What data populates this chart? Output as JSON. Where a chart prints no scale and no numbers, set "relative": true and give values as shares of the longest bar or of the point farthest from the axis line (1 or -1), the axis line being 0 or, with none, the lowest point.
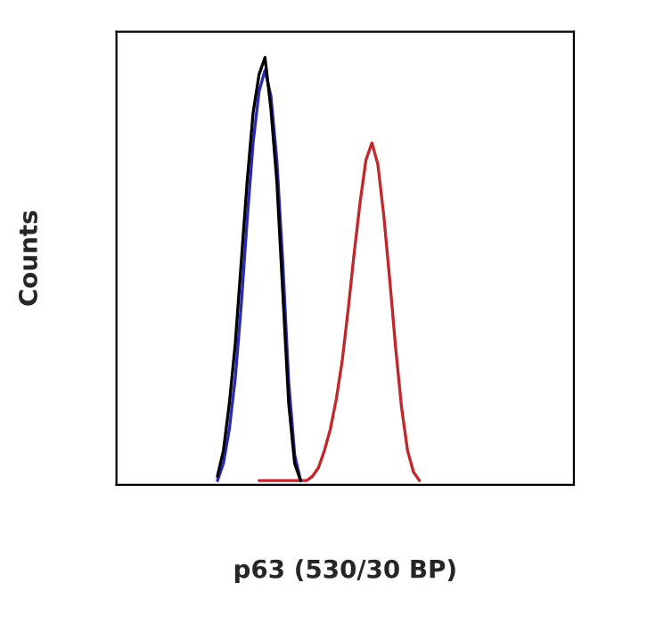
{
  "chart_data": {
    "type": "line",
    "relative": true,
    "xlabel": "p63 (530/30 BP)",
    "ylabel": "Counts",
    "legend": false,
    "categories": [
      null,
      null,
      null,
      null,
      null,
      null,
      null,
      null,
      null,
      null,
      null,
      null,
      null,
      null,
      null,
      null,
      null,
      null,
      null,
      null,
      null,
      null,
      null,
      null,
      null,
      null,
      null,
      null,
      null,
      null,
      null,
      null,
      null,
      null,
      null,
      null,
      null,
      null,
      null,
      null,
      null,
      null,
      null,
      null,
      null,
      null,
      null,
      null,
      null,
      null,
      null,
      null,
      null,
      null,
      null,
      null,
      null,
      null,
      null,
      null,
      null,
      null,
      null,
      null,
      null,
      null,
      null,
      null,
      null,
      null,
      null,
      null,
      null,
      null,
      null,
      null,
      null,
      null
    ],
    "series": [
      {
        "color": "#c0282d",
        "values": [
          null,
          null,
          null,
          null,
          null,
          null,
          null,
          null,
          null,
          null,
          null,
          null,
          null,
          null,
          null,
          null,
          null,
          null,
          null,
          null,
          null,
          null,
          null,
          null,
          0.01,
          0.01,
          0.01,
          0.01,
          0.01,
          0.01,
          0.01,
          0.01,
          0.01,
          0.02,
          0.04,
          0.08,
          0.13,
          0.2,
          0.29,
          0.41,
          0.54,
          0.66,
          0.76,
          0.8,
          0.75,
          0.63,
          0.48,
          0.32,
          0.18,
          0.08,
          0.03,
          0.01,
          null,
          null,
          null,
          null,
          null,
          null,
          null,
          null,
          null,
          null,
          null,
          null,
          null,
          null,
          null,
          null,
          null,
          null,
          null,
          null,
          null,
          null,
          null,
          null,
          null,
          null
        ]
      },
      {
        "color": "#2a2ab8",
        "values": [
          null,
          null,
          null,
          null,
          null,
          null,
          null,
          null,
          null,
          null,
          null,
          null,
          null,
          null,
          null,
          null,
          null,
          0.01,
          0.05,
          0.13,
          0.25,
          0.42,
          0.62,
          0.8,
          0.92,
          0.97,
          0.91,
          0.76,
          0.52,
          0.24,
          0.07,
          0.01,
          null,
          null,
          null,
          null,
          null,
          null,
          null,
          null,
          null,
          null,
          null,
          null,
          null,
          null,
          null,
          null,
          null,
          null,
          null,
          null,
          null,
          null,
          null,
          null,
          null,
          null,
          null,
          null,
          null,
          null,
          null,
          null,
          null,
          null,
          null,
          null,
          null,
          null,
          null,
          null,
          null,
          null,
          null,
          null,
          null,
          null
        ]
      },
      {
        "color": "#000000",
        "values": [
          null,
          null,
          null,
          null,
          null,
          null,
          null,
          null,
          null,
          null,
          null,
          null,
          null,
          null,
          null,
          null,
          null,
          0.02,
          0.08,
          0.19,
          0.33,
          0.52,
          0.71,
          0.87,
          0.96,
          1.0,
          0.88,
          0.71,
          0.45,
          0.19,
          0.05,
          0.01,
          null,
          null,
          null,
          null,
          null,
          null,
          null,
          null,
          null,
          null,
          null,
          null,
          null,
          null,
          null,
          null,
          null,
          null,
          null,
          null,
          null,
          null,
          null,
          null,
          null,
          null,
          null,
          null,
          null,
          null,
          null,
          null,
          null,
          null,
          null,
          null,
          null,
          null,
          null,
          null,
          null,
          null,
          null,
          null,
          null,
          null
        ]
      }
    ]
  }
}
